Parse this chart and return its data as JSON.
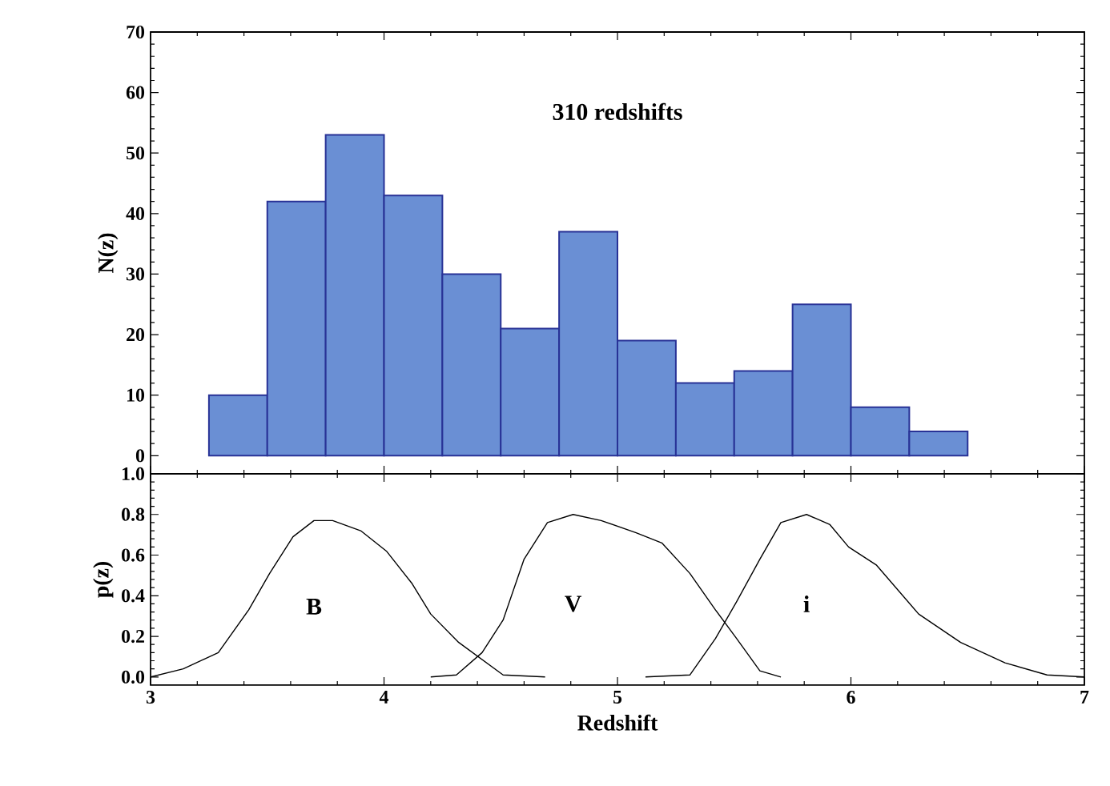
{
  "chart_data": [
    {
      "type": "histogram",
      "annotations": [
        "310 redshifts"
      ],
      "ylabel": "N(z)",
      "bins": [
        3.25,
        3.5,
        3.75,
        4,
        4.25,
        4.5,
        4.75,
        5,
        5.25,
        5.5,
        5.75,
        6,
        6.25,
        6.5
      ],
      "values": [
        10,
        42,
        53,
        43,
        30,
        21,
        37,
        19,
        12,
        14,
        25,
        8,
        4
      ],
      "color": "#6a8fd4",
      "xlim": [
        3,
        7
      ],
      "xticks": [
        3,
        4,
        5,
        6,
        7
      ],
      "ylim": [
        -3,
        70
      ],
      "yticks": [
        0,
        10,
        20,
        30,
        40,
        50,
        60,
        70
      ],
      "tick_labels": "y",
      "grid": false
    },
    {
      "type": "line",
      "xlabel": "Redshift",
      "ylabel": "p(z)",
      "marker": "none",
      "line_style": "solid",
      "xlim": [
        3,
        7
      ],
      "xticks": [
        3,
        4,
        5,
        6,
        7
      ],
      "ylim": [
        -0.04,
        1.0
      ],
      "yticks": [
        {
          "value": 0,
          "label": "0.0"
        },
        {
          "value": 0.2,
          "label": "0.2"
        },
        {
          "value": 0.4,
          "label": "0.4"
        },
        {
          "value": 0.6,
          "label": "0.6"
        },
        {
          "value": 0.8,
          "label": "0.8"
        },
        {
          "value": 1.0,
          "label": "1.0"
        }
      ],
      "grid": false,
      "series": [
        {
          "name": "B",
          "color": "#000000",
          "x": [
            3.0,
            3.14,
            3.29,
            3.42,
            3.51,
            3.61,
            3.7,
            3.78,
            3.9,
            4.01,
            4.12,
            4.2,
            4.32,
            4.51,
            4.69
          ],
          "values": [
            0.0,
            0.04,
            0.12,
            0.33,
            0.51,
            0.69,
            0.77,
            0.77,
            0.72,
            0.62,
            0.46,
            0.31,
            0.17,
            0.01,
            0.0
          ]
        },
        {
          "name": "V",
          "color": "#000000",
          "x": [
            4.2,
            4.31,
            4.42,
            4.51,
            4.6,
            4.7,
            4.81,
            4.93,
            5.08,
            5.19,
            5.31,
            5.42,
            5.51,
            5.61,
            5.7
          ],
          "values": [
            0.0,
            0.01,
            0.12,
            0.28,
            0.58,
            0.76,
            0.8,
            0.77,
            0.71,
            0.66,
            0.51,
            0.33,
            0.19,
            0.03,
            0.0
          ]
        },
        {
          "name": "i",
          "color": "#000000",
          "x": [
            5.12,
            5.31,
            5.42,
            5.51,
            5.61,
            5.7,
            5.81,
            5.91,
            5.99,
            6.11,
            6.29,
            6.47,
            6.66,
            6.84,
            7.0
          ],
          "values": [
            0.0,
            0.01,
            0.19,
            0.37,
            0.58,
            0.76,
            0.8,
            0.75,
            0.64,
            0.55,
            0.31,
            0.17,
            0.07,
            0.01,
            0.0
          ]
        }
      ]
    }
  ]
}
